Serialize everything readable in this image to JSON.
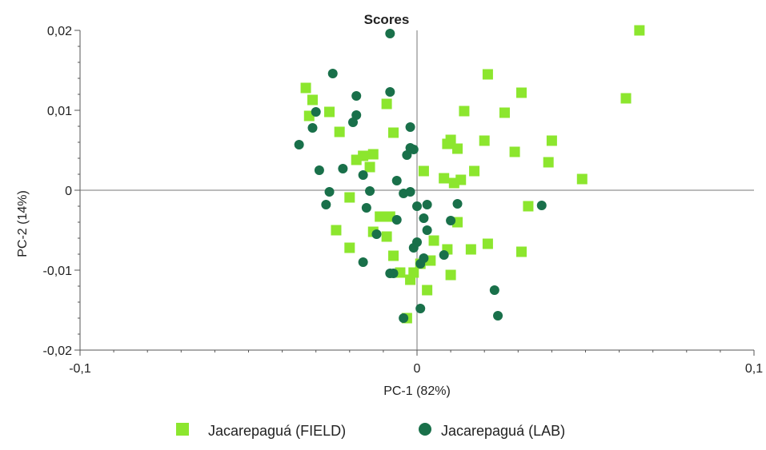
{
  "chart_data": {
    "type": "scatter",
    "title": "Scores",
    "xlabel": "PC-1 (82%)",
    "ylabel": "PC-2 (14%)",
    "xlim": [
      -0.1,
      0.1
    ],
    "ylim": [
      -0.02,
      0.02
    ],
    "xticks": [
      {
        "value": -0.1,
        "label": "-0,1"
      },
      {
        "value": 0,
        "label": "0"
      },
      {
        "value": 0.1,
        "label": "0,1"
      }
    ],
    "yticks": [
      {
        "value": 0.02,
        "label": "0,02"
      },
      {
        "value": 0.01,
        "label": "0,01"
      },
      {
        "value": 0,
        "label": "0"
      },
      {
        "value": -0.01,
        "label": "-0,01"
      },
      {
        "value": -0.02,
        "label": "-0,02"
      }
    ],
    "grid": false,
    "legend_position": "bottom",
    "series": [
      {
        "name": "Jacarepaguá (FIELD)",
        "marker": "square",
        "color": "#8ce62e",
        "points": [
          [
            -0.033,
            0.0128
          ],
          [
            -0.031,
            0.0113
          ],
          [
            -0.032,
            0.0093
          ],
          [
            -0.026,
            0.0098
          ],
          [
            -0.023,
            0.0073
          ],
          [
            -0.018,
            0.0038
          ],
          [
            -0.016,
            0.0043
          ],
          [
            -0.013,
            0.0045
          ],
          [
            -0.014,
            0.0029
          ],
          [
            -0.02,
            -0.0009
          ],
          [
            -0.024,
            -0.005
          ],
          [
            -0.02,
            -0.0072
          ],
          [
            -0.013,
            -0.0052
          ],
          [
            -0.011,
            -0.0033
          ],
          [
            -0.008,
            -0.0033
          ],
          [
            -0.009,
            -0.0058
          ],
          [
            -0.007,
            -0.0082
          ],
          [
            -0.005,
            -0.0103
          ],
          [
            -0.002,
            -0.0112
          ],
          [
            -0.001,
            -0.0103
          ],
          [
            -0.003,
            -0.016
          ],
          [
            -0.009,
            0.0108
          ],
          [
            -0.007,
            0.0072
          ],
          [
            0.001,
            -0.0092
          ],
          [
            0.003,
            -0.0125
          ],
          [
            0.004,
            -0.0088
          ],
          [
            0.005,
            -0.0063
          ],
          [
            0.009,
            -0.0074
          ],
          [
            0.01,
            -0.0106
          ],
          [
            0.009,
            0.0058
          ],
          [
            0.01,
            0.0063
          ],
          [
            0.012,
            0.0052
          ],
          [
            0.011,
            0.0009
          ],
          [
            0.013,
            0.0013
          ],
          [
            0.012,
            -0.004
          ],
          [
            0.014,
            0.0099
          ],
          [
            0.016,
            -0.0074
          ],
          [
            0.017,
            0.0024
          ],
          [
            0.02,
            0.0062
          ],
          [
            0.021,
            0.0145
          ],
          [
            0.021,
            -0.0067
          ],
          [
            0.026,
            0.0097
          ],
          [
            0.029,
            0.0048
          ],
          [
            0.031,
            0.0122
          ],
          [
            0.031,
            -0.0077
          ],
          [
            0.033,
            -0.002
          ],
          [
            0.039,
            0.0035
          ],
          [
            0.04,
            0.0062
          ],
          [
            0.049,
            0.0014
          ],
          [
            0.062,
            0.0115
          ],
          [
            0.066,
            0.02
          ],
          [
            0.002,
            0.0024
          ],
          [
            0.008,
            0.0015
          ]
        ]
      },
      {
        "name": "Jacarepaguá (LAB)",
        "marker": "circle",
        "color": "#19704a",
        "points": [
          [
            -0.008,
            0.0196
          ],
          [
            -0.025,
            0.0146
          ],
          [
            -0.018,
            0.0118
          ],
          [
            -0.018,
            0.0094
          ],
          [
            -0.019,
            0.0085
          ],
          [
            -0.008,
            0.0123
          ],
          [
            -0.03,
            0.0098
          ],
          [
            -0.031,
            0.0078
          ],
          [
            -0.035,
            0.0057
          ],
          [
            -0.029,
            0.0025
          ],
          [
            -0.026,
            -0.0002
          ],
          [
            -0.027,
            -0.0018
          ],
          [
            -0.022,
            0.0027
          ],
          [
            -0.016,
            0.0019
          ],
          [
            -0.014,
            -0.0001
          ],
          [
            -0.015,
            -0.0022
          ],
          [
            -0.012,
            -0.0055
          ],
          [
            -0.016,
            -0.009
          ],
          [
            -0.007,
            -0.0104
          ],
          [
            -0.008,
            -0.0104
          ],
          [
            -0.006,
            0.0012
          ],
          [
            -0.004,
            -0.0004
          ],
          [
            -0.006,
            -0.0037
          ],
          [
            -0.003,
            0.0044
          ],
          [
            -0.002,
            0.0053
          ],
          [
            -0.001,
            0.0051
          ],
          [
            -0.002,
            0.0079
          ],
          [
            -0.002,
            -0.0002
          ],
          [
            0.0,
            -0.002
          ],
          [
            0.0,
            -0.0065
          ],
          [
            -0.001,
            -0.0072
          ],
          [
            0.001,
            -0.0092
          ],
          [
            0.002,
            -0.0085
          ],
          [
            0.003,
            -0.005
          ],
          [
            0.003,
            -0.0018
          ],
          [
            0.002,
            -0.0035
          ],
          [
            0.008,
            -0.0081
          ],
          [
            0.01,
            -0.0038
          ],
          [
            0.012,
            -0.0017
          ],
          [
            0.001,
            -0.0148
          ],
          [
            -0.004,
            -0.016
          ],
          [
            0.023,
            -0.0125
          ],
          [
            0.024,
            -0.0157
          ],
          [
            0.037,
            -0.0019
          ]
        ]
      }
    ]
  }
}
